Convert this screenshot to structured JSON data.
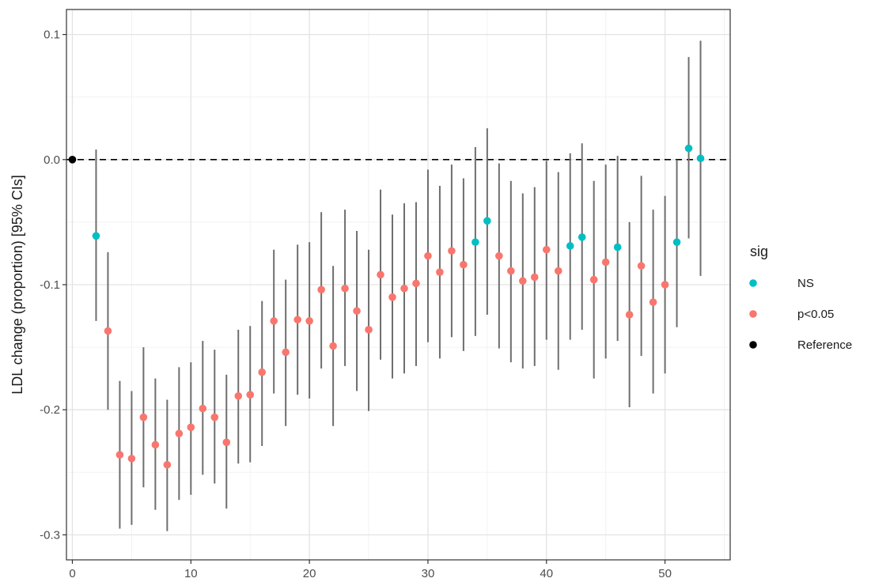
{
  "chart_data": {
    "type": "scatter",
    "title": "",
    "xlabel": "",
    "ylabel": "LDL change (proportion) [95% CIs]",
    "xlim": [
      -0.5,
      55.5
    ],
    "ylim": [
      -0.32,
      0.12
    ],
    "x_ticks": [
      0,
      10,
      20,
      30,
      40,
      50
    ],
    "x_tick_labels": [
      "0",
      "10",
      "20",
      "30",
      "40",
      "50"
    ],
    "y_ticks": [
      -0.3,
      -0.2,
      -0.1,
      0.0,
      0.1
    ],
    "y_tick_labels": [
      "-0.3",
      "-0.2",
      "-0.1",
      "0.0",
      "0.1"
    ],
    "grid": true,
    "reference_line": {
      "y": 0,
      "style": "dashed"
    },
    "legend": {
      "title": "sig",
      "position": "right",
      "entries": [
        {
          "label": "NS",
          "color": "#00BFC4"
        },
        {
          "label": "p<0.05",
          "color": "#F8766D"
        },
        {
          "label": "Reference",
          "color": "#000000"
        }
      ]
    },
    "points": [
      {
        "x": 0,
        "y": 0.0,
        "lo": 0.0,
        "hi": 0.0,
        "sig": "Reference"
      },
      {
        "x": 2,
        "y": -0.061,
        "lo": -0.129,
        "hi": 0.008,
        "sig": "NS"
      },
      {
        "x": 3,
        "y": -0.137,
        "lo": -0.2,
        "hi": -0.074,
        "sig": "p<0.05"
      },
      {
        "x": 4,
        "y": -0.236,
        "lo": -0.295,
        "hi": -0.177,
        "sig": "p<0.05"
      },
      {
        "x": 5,
        "y": -0.239,
        "lo": -0.292,
        "hi": -0.185,
        "sig": "p<0.05"
      },
      {
        "x": 6,
        "y": -0.206,
        "lo": -0.262,
        "hi": -0.15,
        "sig": "p<0.05"
      },
      {
        "x": 7,
        "y": -0.228,
        "lo": -0.28,
        "hi": -0.175,
        "sig": "p<0.05"
      },
      {
        "x": 8,
        "y": -0.244,
        "lo": -0.297,
        "hi": -0.192,
        "sig": "p<0.05"
      },
      {
        "x": 9,
        "y": -0.219,
        "lo": -0.272,
        "hi": -0.166,
        "sig": "p<0.05"
      },
      {
        "x": 10,
        "y": -0.214,
        "lo": -0.268,
        "hi": -0.162,
        "sig": "p<0.05"
      },
      {
        "x": 11,
        "y": -0.199,
        "lo": -0.252,
        "hi": -0.145,
        "sig": "p<0.05"
      },
      {
        "x": 12,
        "y": -0.206,
        "lo": -0.259,
        "hi": -0.152,
        "sig": "p<0.05"
      },
      {
        "x": 13,
        "y": -0.226,
        "lo": -0.279,
        "hi": -0.172,
        "sig": "p<0.05"
      },
      {
        "x": 14,
        "y": -0.189,
        "lo": -0.243,
        "hi": -0.136,
        "sig": "p<0.05"
      },
      {
        "x": 15,
        "y": -0.188,
        "lo": -0.242,
        "hi": -0.133,
        "sig": "p<0.05"
      },
      {
        "x": 16,
        "y": -0.17,
        "lo": -0.229,
        "hi": -0.113,
        "sig": "p<0.05"
      },
      {
        "x": 17,
        "y": -0.129,
        "lo": -0.187,
        "hi": -0.072,
        "sig": "p<0.05"
      },
      {
        "x": 18,
        "y": -0.154,
        "lo": -0.213,
        "hi": -0.096,
        "sig": "p<0.05"
      },
      {
        "x": 19,
        "y": -0.128,
        "lo": -0.188,
        "hi": -0.068,
        "sig": "p<0.05"
      },
      {
        "x": 20,
        "y": -0.129,
        "lo": -0.191,
        "hi": -0.066,
        "sig": "p<0.05"
      },
      {
        "x": 21,
        "y": -0.104,
        "lo": -0.167,
        "hi": -0.042,
        "sig": "p<0.05"
      },
      {
        "x": 22,
        "y": -0.149,
        "lo": -0.213,
        "hi": -0.085,
        "sig": "p<0.05"
      },
      {
        "x": 23,
        "y": -0.103,
        "lo": -0.165,
        "hi": -0.04,
        "sig": "p<0.05"
      },
      {
        "x": 24,
        "y": -0.121,
        "lo": -0.185,
        "hi": -0.057,
        "sig": "p<0.05"
      },
      {
        "x": 25,
        "y": -0.136,
        "lo": -0.201,
        "hi": -0.072,
        "sig": "p<0.05"
      },
      {
        "x": 26,
        "y": -0.092,
        "lo": -0.16,
        "hi": -0.024,
        "sig": "p<0.05"
      },
      {
        "x": 27,
        "y": -0.11,
        "lo": -0.175,
        "hi": -0.044,
        "sig": "p<0.05"
      },
      {
        "x": 28,
        "y": -0.103,
        "lo": -0.171,
        "hi": -0.035,
        "sig": "p<0.05"
      },
      {
        "x": 29,
        "y": -0.099,
        "lo": -0.165,
        "hi": -0.034,
        "sig": "p<0.05"
      },
      {
        "x": 30,
        "y": -0.077,
        "lo": -0.146,
        "hi": -0.008,
        "sig": "p<0.05"
      },
      {
        "x": 31,
        "y": -0.09,
        "lo": -0.159,
        "hi": -0.021,
        "sig": "p<0.05"
      },
      {
        "x": 32,
        "y": -0.073,
        "lo": -0.142,
        "hi": -0.004,
        "sig": "p<0.05"
      },
      {
        "x": 33,
        "y": -0.084,
        "lo": -0.153,
        "hi": -0.015,
        "sig": "p<0.05"
      },
      {
        "x": 34,
        "y": -0.066,
        "lo": -0.141,
        "hi": 0.01,
        "sig": "NS"
      },
      {
        "x": 35,
        "y": -0.049,
        "lo": -0.124,
        "hi": 0.025,
        "sig": "NS"
      },
      {
        "x": 36,
        "y": -0.077,
        "lo": -0.151,
        "hi": -0.003,
        "sig": "p<0.05"
      },
      {
        "x": 37,
        "y": -0.089,
        "lo": -0.162,
        "hi": -0.017,
        "sig": "p<0.05"
      },
      {
        "x": 38,
        "y": -0.097,
        "lo": -0.167,
        "hi": -0.027,
        "sig": "p<0.05"
      },
      {
        "x": 39,
        "y": -0.094,
        "lo": -0.165,
        "hi": -0.022,
        "sig": "p<0.05"
      },
      {
        "x": 40,
        "y": -0.072,
        "lo": -0.144,
        "hi": -0.001,
        "sig": "p<0.05"
      },
      {
        "x": 41,
        "y": -0.089,
        "lo": -0.168,
        "hi": -0.01,
        "sig": "p<0.05"
      },
      {
        "x": 42,
        "y": -0.069,
        "lo": -0.144,
        "hi": 0.005,
        "sig": "NS"
      },
      {
        "x": 43,
        "y": -0.062,
        "lo": -0.136,
        "hi": 0.013,
        "sig": "NS"
      },
      {
        "x": 44,
        "y": -0.096,
        "lo": -0.175,
        "hi": -0.017,
        "sig": "p<0.05"
      },
      {
        "x": 45,
        "y": -0.082,
        "lo": -0.159,
        "hi": -0.004,
        "sig": "p<0.05"
      },
      {
        "x": 46,
        "y": -0.07,
        "lo": -0.145,
        "hi": 0.003,
        "sig": "NS"
      },
      {
        "x": 47,
        "y": -0.124,
        "lo": -0.198,
        "hi": -0.05,
        "sig": "p<0.05"
      },
      {
        "x": 48,
        "y": -0.085,
        "lo": -0.157,
        "hi": -0.013,
        "sig": "p<0.05"
      },
      {
        "x": 49,
        "y": -0.114,
        "lo": -0.187,
        "hi": -0.04,
        "sig": "p<0.05"
      },
      {
        "x": 50,
        "y": -0.1,
        "lo": -0.171,
        "hi": -0.029,
        "sig": "p<0.05"
      },
      {
        "x": 51,
        "y": -0.066,
        "lo": -0.134,
        "hi": 0.0,
        "sig": "NS"
      },
      {
        "x": 52,
        "y": 0.009,
        "lo": -0.063,
        "hi": 0.082,
        "sig": "NS"
      },
      {
        "x": 53,
        "y": 0.001,
        "lo": -0.093,
        "hi": 0.095,
        "sig": "NS"
      }
    ]
  }
}
